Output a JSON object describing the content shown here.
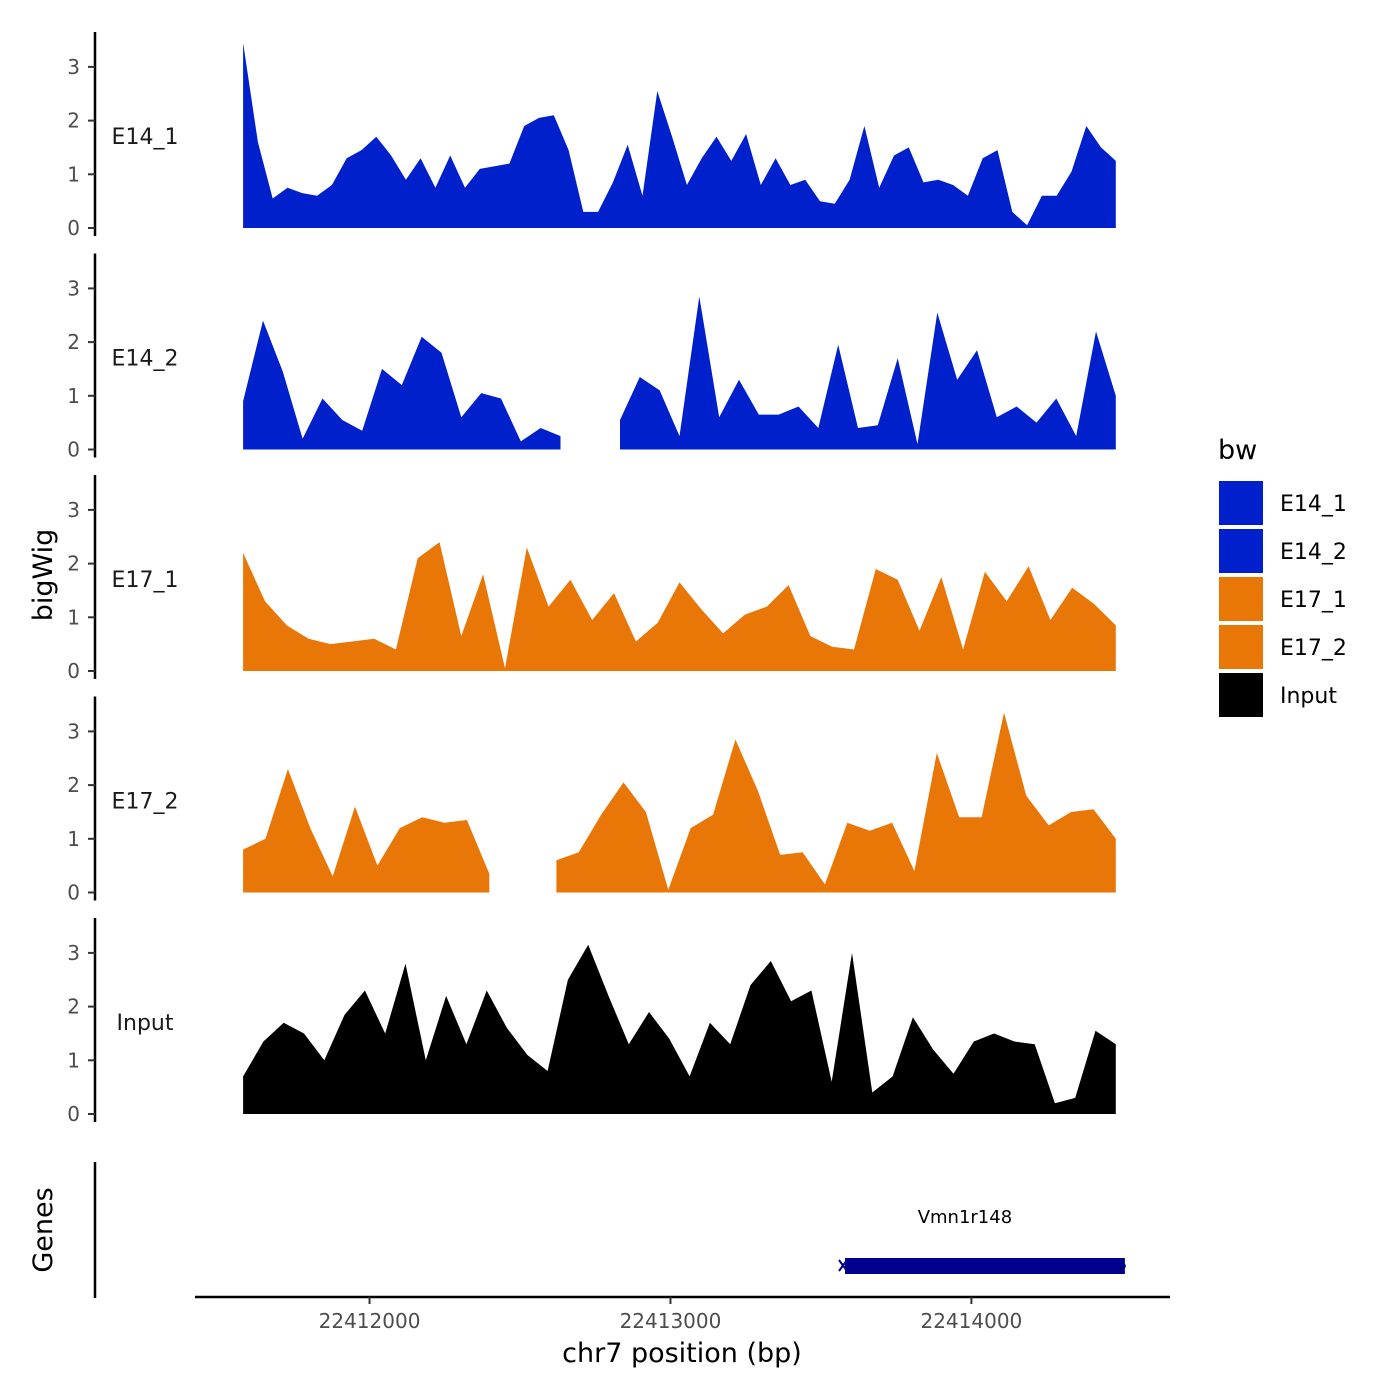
{
  "colors": {
    "E14": "#0020CC",
    "E17": "#E87707",
    "Input": "#000000",
    "gene": "#00008B"
  },
  "chart_data": {
    "type": "area",
    "xlabel": "chr7 position (bp)",
    "ylabel": "bigWig",
    "genes_ylabel": "Genes",
    "xlim": [
      22411420,
      22414660
    ],
    "ylim": [
      0,
      3.6
    ],
    "x_ticks": [
      22412000,
      22413000,
      22414000
    ],
    "x_tick_labels": [
      "22412000",
      "22413000",
      "22414000"
    ],
    "y_ticks": [
      0,
      1,
      2,
      3
    ],
    "y_tick_labels": [
      "0",
      "1",
      "2",
      "3"
    ],
    "legend_title": "bw",
    "legend_entries": [
      {
        "label": "E14_1",
        "color": "#0020CC"
      },
      {
        "label": "E14_2",
        "color": "#0020CC"
      },
      {
        "label": "E17_1",
        "color": "#E87707"
      },
      {
        "label": "E17_2",
        "color": "#E87707"
      },
      {
        "label": "Input",
        "color": "#000000"
      }
    ],
    "x_start": 22411580,
    "x_end": 22414480,
    "step": 50,
    "series": [
      {
        "name": "E14_1",
        "color": "#0020CC",
        "values": [
          3.45,
          1.6,
          0.55,
          0.75,
          0.65,
          0.6,
          0.8,
          1.3,
          1.45,
          1.7,
          1.35,
          0.9,
          1.3,
          0.75,
          1.35,
          0.75,
          1.1,
          1.15,
          1.2,
          1.9,
          2.05,
          2.1,
          1.45,
          0.3,
          0.3,
          0.85,
          1.55,
          0.6,
          2.55,
          1.7,
          0.8,
          1.3,
          1.7,
          1.25,
          1.75,
          0.8,
          1.3,
          0.8,
          0.9,
          0.5,
          0.45,
          0.9,
          1.9,
          0.75,
          1.35,
          1.5,
          0.85,
          0.9,
          0.8,
          0.6,
          1.3,
          1.45,
          0.3,
          0.05,
          0.6,
          0.6,
          1.05,
          1.9,
          1.5,
          1.25
        ]
      },
      {
        "name": "E14_2",
        "color": "#0020CC",
        "values": [
          0.9,
          2.4,
          1.45,
          0.2,
          0.95,
          0.55,
          0.35,
          1.5,
          1.2,
          2.1,
          1.8,
          0.6,
          1.05,
          0.95,
          0.15,
          0.4,
          0.25,
          null,
          null,
          0.55,
          1.35,
          1.1,
          0.25,
          2.85,
          0.6,
          1.3,
          0.65,
          0.65,
          0.8,
          0.4,
          1.95,
          0.4,
          0.45,
          1.7,
          0.1,
          2.55,
          1.3,
          1.85,
          0.6,
          0.8,
          0.5,
          0.95,
          0.25,
          2.2,
          1.0
        ]
      },
      {
        "name": "E17_1",
        "color": "#E87707",
        "values": [
          2.2,
          1.3,
          0.85,
          0.6,
          0.5,
          0.55,
          0.6,
          0.4,
          2.1,
          2.4,
          0.65,
          1.8,
          0.05,
          2.3,
          1.2,
          1.7,
          0.95,
          1.45,
          0.55,
          0.9,
          1.65,
          1.15,
          0.7,
          1.05,
          1.2,
          1.6,
          0.65,
          0.45,
          0.4,
          1.9,
          1.7,
          0.75,
          1.75,
          0.4,
          1.85,
          1.3,
          1.95,
          0.95,
          1.55,
          1.25,
          0.85
        ]
      },
      {
        "name": "E17_2",
        "color": "#E87707",
        "values": [
          0.8,
          1.0,
          2.3,
          1.2,
          0.3,
          1.6,
          0.5,
          1.2,
          1.4,
          1.3,
          1.35,
          0.35,
          null,
          null,
          0.6,
          0.75,
          1.45,
          2.05,
          1.5,
          0.05,
          1.2,
          1.45,
          2.85,
          1.9,
          0.7,
          0.75,
          0.15,
          1.3,
          1.15,
          1.3,
          0.4,
          2.6,
          1.4,
          1.4,
          3.35,
          1.8,
          1.25,
          1.5,
          1.55,
          1.0
        ]
      },
      {
        "name": "Input",
        "color": "#000000",
        "values": [
          0.7,
          1.35,
          1.7,
          1.5,
          1.0,
          1.85,
          2.3,
          1.5,
          2.8,
          1.0,
          2.2,
          1.3,
          2.3,
          1.6,
          1.1,
          0.8,
          2.5,
          3.15,
          2.2,
          1.3,
          1.9,
          1.4,
          0.7,
          1.7,
          1.3,
          2.4,
          2.85,
          2.1,
          2.3,
          0.6,
          3.0,
          0.4,
          0.7,
          1.8,
          1.2,
          0.75,
          1.35,
          1.5,
          1.35,
          1.3,
          0.2,
          0.3,
          1.55,
          1.3
        ]
      }
    ],
    "genes": [
      {
        "name": "Vmn1r148",
        "start": 22413580,
        "end": 22414510,
        "strand": "-"
      }
    ]
  }
}
